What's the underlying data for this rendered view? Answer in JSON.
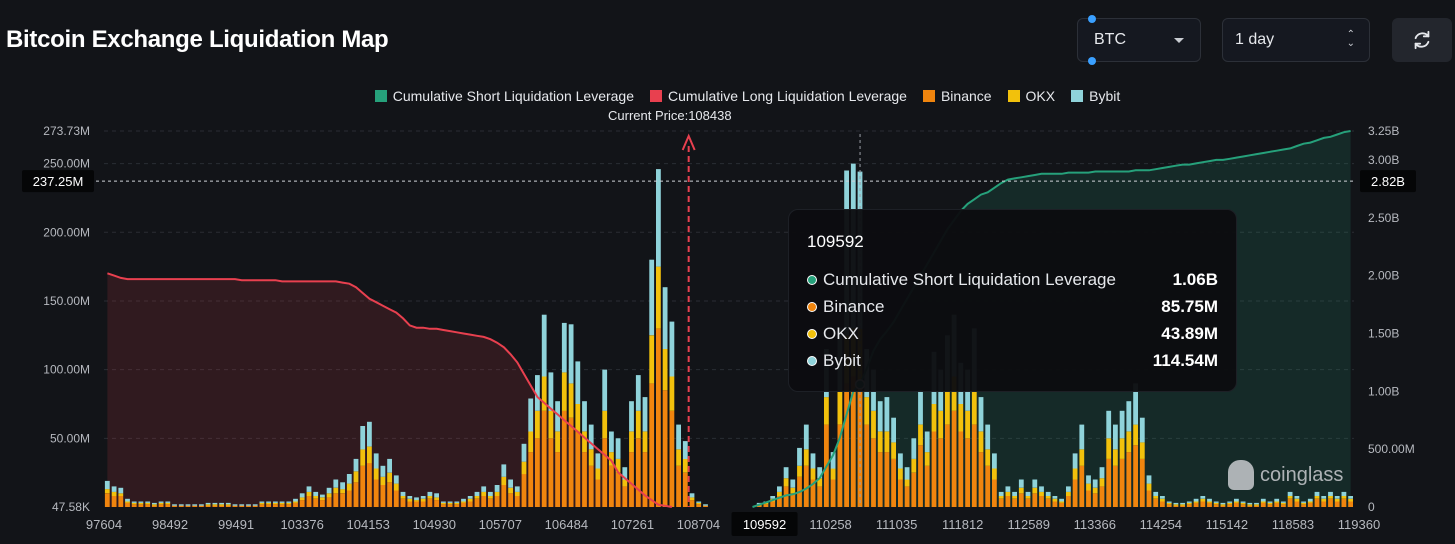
{
  "header": {
    "title": "Bitcoin Exchange Liquidation Map",
    "coin_select": "BTC",
    "period_select": "1 day"
  },
  "legend": [
    {
      "label": "Cumulative Short Liquidation Leverage",
      "color": "#26a17b"
    },
    {
      "label": "Cumulative Long Liquidation Leverage",
      "color": "#e8404f"
    },
    {
      "label": "Binance",
      "color": "#f0850e"
    },
    {
      "label": "OKX",
      "color": "#f2c10c"
    },
    {
      "label": "Bybit",
      "color": "#8fd3da"
    }
  ],
  "current_price_label": "Current Price:108438",
  "tooltip": {
    "title": "109592",
    "rows": [
      {
        "name": "Cumulative Short Liquidation Leverage",
        "value": "1.06B",
        "color": "#26a17b"
      },
      {
        "name": "Binance",
        "value": "85.75M",
        "color": "#f0850e"
      },
      {
        "name": "OKX",
        "value": "43.89M",
        "color": "#f2c10c"
      },
      {
        "name": "Bybit",
        "value": "114.54M",
        "color": "#8fd3da"
      }
    ]
  },
  "watermark": "coinglass",
  "chart_data": {
    "type": "bar",
    "y_left_ticks": [
      "273.73M",
      "250.00M",
      "200.00M",
      "150.00M",
      "100.00M",
      "50.00M",
      "47.58K"
    ],
    "y_left_tick_values": [
      273.73,
      250,
      200,
      150,
      100,
      50,
      0.04758
    ],
    "y_left_unit": "M",
    "y_right_ticks": [
      "3.25B",
      "3.00B",
      "2.50B",
      "2.00B",
      "1.50B",
      "1.00B",
      "500.00M",
      "0"
    ],
    "y_right_tick_values": [
      3.25,
      3.0,
      2.5,
      2.0,
      1.5,
      1.0,
      0.5,
      0
    ],
    "y_right_unit": "B",
    "y_left_marker": "237.25M",
    "y_left_marker_value": 237.25,
    "y_right_marker": "2.82B",
    "y_right_marker_value": 2.82,
    "x_tick_labels": [
      "97604",
      "98492",
      "99491",
      "103376",
      "104153",
      "104930",
      "105707",
      "106484",
      "107261",
      "108704",
      "109592",
      "110258",
      "111035",
      "111812",
      "112589",
      "113366",
      "114254",
      "115142",
      "118583",
      "119360"
    ],
    "highlight_x_label": "109592",
    "current_price": 108438,
    "series_order": [
      "Binance",
      "OKX",
      "Bybit"
    ],
    "bars": [
      [
        10,
        3,
        6
      ],
      [
        8,
        3,
        4
      ],
      [
        8,
        2,
        4
      ],
      [
        3,
        1,
        2
      ],
      [
        2,
        1,
        1
      ],
      [
        2,
        1,
        1
      ],
      [
        2,
        1,
        1
      ],
      [
        1,
        1,
        1
      ],
      [
        2,
        1,
        1
      ],
      [
        2,
        1,
        1
      ],
      [
        1,
        0,
        1
      ],
      [
        1,
        0,
        1
      ],
      [
        1,
        0,
        1
      ],
      [
        1,
        0,
        1
      ],
      [
        1,
        0,
        1
      ],
      [
        1,
        1,
        1
      ],
      [
        1,
        1,
        1
      ],
      [
        1,
        1,
        1
      ],
      [
        1,
        1,
        1
      ],
      [
        1,
        0,
        1
      ],
      [
        1,
        0,
        1
      ],
      [
        1,
        0,
        1
      ],
      [
        1,
        0,
        1
      ],
      [
        2,
        1,
        1
      ],
      [
        2,
        1,
        1
      ],
      [
        2,
        1,
        1
      ],
      [
        2,
        1,
        1
      ],
      [
        2,
        1,
        1
      ],
      [
        3,
        1,
        2
      ],
      [
        5,
        2,
        3
      ],
      [
        8,
        3,
        4
      ],
      [
        6,
        2,
        3
      ],
      [
        5,
        2,
        2
      ],
      [
        7,
        3,
        4
      ],
      [
        10,
        4,
        6
      ],
      [
        10,
        3,
        5
      ],
      [
        12,
        5,
        7
      ],
      [
        18,
        8,
        9
      ],
      [
        30,
        12,
        17
      ],
      [
        32,
        12,
        18
      ],
      [
        20,
        8,
        11
      ],
      [
        16,
        6,
        8
      ],
      [
        18,
        7,
        10
      ],
      [
        12,
        5,
        6
      ],
      [
        6,
        2,
        3
      ],
      [
        4,
        2,
        2
      ],
      [
        4,
        1,
        2
      ],
      [
        4,
        2,
        2
      ],
      [
        6,
        2,
        3
      ],
      [
        5,
        2,
        3
      ],
      [
        2,
        1,
        1
      ],
      [
        2,
        1,
        1
      ],
      [
        2,
        1,
        1
      ],
      [
        3,
        1,
        2
      ],
      [
        4,
        2,
        2
      ],
      [
        6,
        2,
        3
      ],
      [
        8,
        3,
        4
      ],
      [
        6,
        2,
        3
      ],
      [
        8,
        3,
        5
      ],
      [
        16,
        6,
        9
      ],
      [
        10,
        4,
        6
      ],
      [
        8,
        3,
        4
      ],
      [
        24,
        9,
        13
      ],
      [
        40,
        15,
        24
      ],
      [
        50,
        20,
        26
      ],
      [
        70,
        25,
        45
      ],
      [
        50,
        20,
        28
      ],
      [
        40,
        15,
        22
      ],
      [
        70,
        28,
        36
      ],
      [
        65,
        25,
        43
      ],
      [
        55,
        20,
        31
      ],
      [
        40,
        15,
        22
      ],
      [
        30,
        12,
        18
      ],
      [
        20,
        8,
        11
      ],
      [
        50,
        20,
        30
      ],
      [
        30,
        10,
        15
      ],
      [
        25,
        10,
        15
      ],
      [
        15,
        5,
        9
      ],
      [
        40,
        15,
        22
      ],
      [
        50,
        20,
        26
      ],
      [
        40,
        15,
        25
      ],
      [
        90,
        35,
        55
      ],
      [
        130,
        45,
        71
      ],
      [
        85,
        30,
        45
      ],
      [
        70,
        25,
        40
      ],
      [
        30,
        12,
        18
      ],
      [
        25,
        10,
        13
      ],
      [
        5,
        2,
        3
      ],
      [
        2,
        1,
        1
      ],
      [
        1,
        0,
        1
      ],
      [
        0,
        0,
        0
      ],
      [
        0,
        0,
        0
      ],
      [
        0,
        0,
        0
      ],
      [
        0,
        0,
        0
      ],
      [
        0,
        0,
        0
      ],
      [
        0,
        0,
        0
      ],
      [
        0,
        0,
        0
      ],
      [
        1,
        1,
        1
      ],
      [
        2,
        1,
        1
      ],
      [
        4,
        2,
        2
      ],
      [
        8,
        3,
        4
      ],
      [
        15,
        6,
        8
      ],
      [
        10,
        4,
        6
      ],
      [
        22,
        8,
        13
      ],
      [
        30,
        12,
        18
      ],
      [
        20,
        8,
        11
      ],
      [
        15,
        6,
        8
      ],
      [
        60,
        20,
        35
      ],
      [
        20,
        8,
        12
      ],
      [
        60,
        25,
        45
      ],
      [
        90,
        35,
        120
      ],
      [
        95,
        35,
        120
      ],
      [
        85.75,
        43.89,
        114.54
      ],
      [
        60,
        20,
        35
      ],
      [
        50,
        20,
        30
      ],
      [
        40,
        15,
        22
      ],
      [
        40,
        15,
        25
      ],
      [
        35,
        12,
        18
      ],
      [
        20,
        8,
        11
      ],
      [
        15,
        5,
        9
      ],
      [
        25,
        10,
        15
      ],
      [
        45,
        15,
        25
      ],
      [
        30,
        10,
        15
      ],
      [
        55,
        20,
        38
      ],
      [
        50,
        20,
        30
      ],
      [
        60,
        25,
        40
      ],
      [
        70,
        25,
        45
      ],
      [
        55,
        20,
        30
      ],
      [
        50,
        20,
        30
      ],
      [
        60,
        25,
        45
      ],
      [
        40,
        15,
        25
      ],
      [
        30,
        12,
        18
      ],
      [
        20,
        8,
        11
      ],
      [
        6,
        2,
        3
      ],
      [
        8,
        3,
        4
      ],
      [
        6,
        2,
        3
      ],
      [
        10,
        4,
        6
      ],
      [
        6,
        2,
        3
      ],
      [
        10,
        4,
        6
      ],
      [
        8,
        3,
        4
      ],
      [
        6,
        2,
        3
      ],
      [
        4,
        2,
        2
      ],
      [
        3,
        1,
        2
      ],
      [
        8,
        3,
        4
      ],
      [
        20,
        8,
        11
      ],
      [
        30,
        12,
        18
      ],
      [
        12,
        5,
        6
      ],
      [
        10,
        4,
        6
      ],
      [
        15,
        6,
        8
      ],
      [
        35,
        15,
        20
      ],
      [
        30,
        12,
        18
      ],
      [
        35,
        15,
        20
      ],
      [
        40,
        15,
        22
      ],
      [
        45,
        15,
        30
      ],
      [
        35,
        12,
        18
      ],
      [
        12,
        5,
        6
      ],
      [
        6,
        2,
        3
      ],
      [
        4,
        2,
        2
      ],
      [
        2,
        1,
        1
      ],
      [
        1,
        1,
        1
      ],
      [
        1,
        1,
        1
      ],
      [
        2,
        1,
        1
      ],
      [
        3,
        1,
        2
      ],
      [
        4,
        2,
        2
      ],
      [
        3,
        1,
        2
      ],
      [
        2,
        1,
        1
      ],
      [
        1,
        1,
        1
      ],
      [
        2,
        1,
        1
      ],
      [
        3,
        1,
        2
      ],
      [
        2,
        1,
        1
      ],
      [
        1,
        1,
        1
      ],
      [
        1,
        1,
        1
      ],
      [
        3,
        1,
        2
      ],
      [
        2,
        1,
        1
      ],
      [
        3,
        1,
        2
      ],
      [
        2,
        1,
        1
      ],
      [
        6,
        2,
        3
      ],
      [
        4,
        2,
        2
      ],
      [
        2,
        1,
        1
      ],
      [
        3,
        1,
        2
      ],
      [
        6,
        2,
        3
      ],
      [
        4,
        2,
        2
      ],
      [
        6,
        2,
        3
      ],
      [
        4,
        2,
        2
      ],
      [
        6,
        2,
        3
      ],
      [
        4,
        2,
        2
      ]
    ],
    "long_cumulative": [
      2.02,
      2.0,
      1.98,
      1.97,
      1.97,
      1.97,
      1.97,
      1.97,
      1.97,
      1.97,
      1.97,
      1.97,
      1.97,
      1.97,
      1.97,
      1.97,
      1.97,
      1.97,
      1.97,
      1.97,
      1.96,
      1.96,
      1.96,
      1.96,
      1.96,
      1.96,
      1.95,
      1.95,
      1.95,
      1.95,
      1.95,
      1.95,
      1.95,
      1.95,
      1.95,
      1.94,
      1.93,
      1.9,
      1.85,
      1.8,
      1.77,
      1.74,
      1.71,
      1.68,
      1.63,
      1.57,
      1.55,
      1.55,
      1.54,
      1.54,
      1.53,
      1.52,
      1.51,
      1.5,
      1.49,
      1.48,
      1.47,
      1.45,
      1.42,
      1.38,
      1.32,
      1.25,
      1.15,
      1.05,
      0.95,
      0.9,
      0.85,
      0.8,
      0.75,
      0.7,
      0.65,
      0.6,
      0.55,
      0.5,
      0.45,
      0.4,
      0.3,
      0.25,
      0.2,
      0.15,
      0.1,
      0.06,
      0.02,
      0.01,
      0.0
    ],
    "long_start_bar": 0,
    "short_cumulative": [
      0.0,
      0.02,
      0.04,
      0.06,
      0.08,
      0.1,
      0.11,
      0.13,
      0.16,
      0.2,
      0.25,
      0.35,
      0.45,
      0.6,
      0.8,
      1.0,
      1.06,
      1.2,
      1.35,
      1.45,
      1.52,
      1.6,
      1.7,
      1.8,
      1.9,
      2.0,
      2.1,
      2.2,
      2.3,
      2.4,
      2.48,
      2.56,
      2.62,
      2.66,
      2.7,
      2.72,
      2.76,
      2.8,
      2.83,
      2.84,
      2.85,
      2.86,
      2.87,
      2.88,
      2.88,
      2.88,
      2.88,
      2.89,
      2.89,
      2.89,
      2.89,
      2.9,
      2.9,
      2.9,
      2.9,
      2.9,
      2.9,
      2.91,
      2.91,
      2.91,
      2.92,
      2.93,
      2.94,
      2.95,
      2.96,
      2.96,
      2.97,
      2.98,
      2.99,
      3.0,
      3.0,
      3.01,
      3.02,
      3.03,
      3.04,
      3.05,
      3.06,
      3.07,
      3.08,
      3.09,
      3.1,
      3.12,
      3.14,
      3.15,
      3.17,
      3.19,
      3.2,
      3.22,
      3.24,
      3.25
    ],
    "short_start_bar": 96,
    "highlight_bar": 112,
    "current_price_bar": 86.5
  }
}
